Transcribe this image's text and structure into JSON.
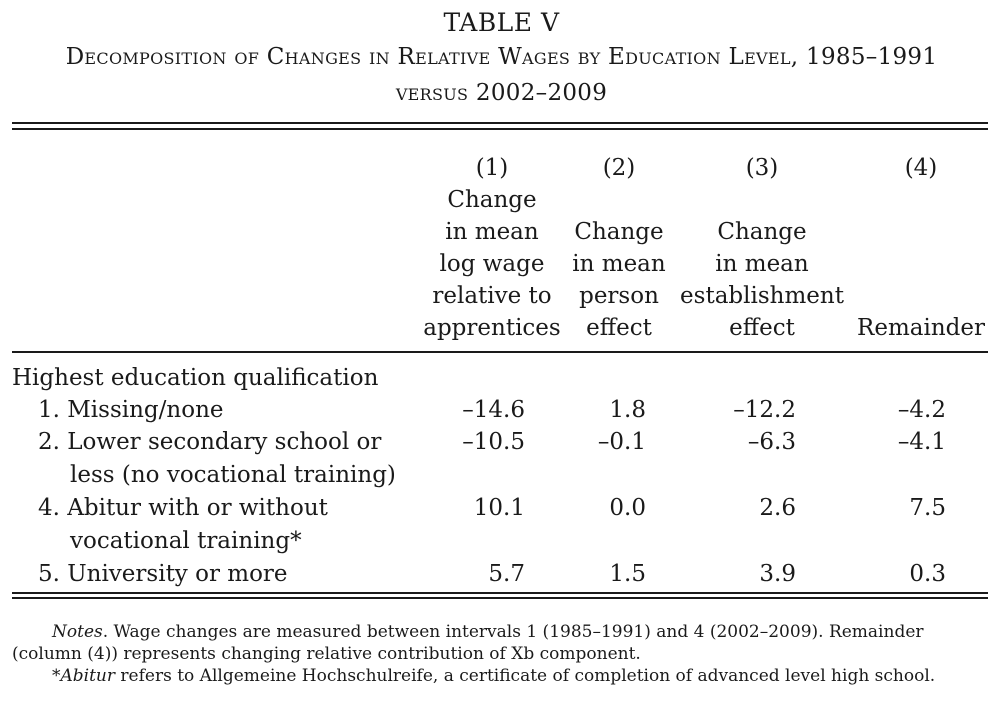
{
  "table": {
    "label": "TABLE V",
    "title_line1": "Decomposition of Changes in Relative Wages by Education Level, 1985–1991",
    "title_line2": "versus 2002–2009",
    "columns": [
      {
        "number": "(1)",
        "heading": [
          "Change",
          "in mean",
          "log wage",
          "relative to",
          "apprentices"
        ]
      },
      {
        "number": "(2)",
        "heading": [
          "Change",
          "in mean",
          "person",
          "effect"
        ]
      },
      {
        "number": "(3)",
        "heading": [
          "Change",
          "in mean",
          "establishment",
          "effect"
        ]
      },
      {
        "number": "(4)",
        "heading": [
          "Remainder"
        ]
      }
    ],
    "section_label": "Highest education qualification",
    "rows": [
      {
        "label": [
          "1. Missing/none"
        ],
        "values": [
          "–14.6",
          "1.8",
          "–12.2",
          "–4.2"
        ]
      },
      {
        "label": [
          "2. Lower secondary school or",
          "less (no vocational training)"
        ],
        "values": [
          "–10.5",
          "–0.1",
          "–6.3",
          "–4.1"
        ]
      },
      {
        "label": [
          "4. Abitur with or without",
          "vocational training*"
        ],
        "values": [
          "10.1",
          "0.0",
          "2.6",
          "7.5"
        ]
      },
      {
        "label": [
          "5. University or more"
        ],
        "values": [
          "5.7",
          "1.5",
          "3.9",
          "0.3"
        ]
      }
    ]
  },
  "notes": {
    "label": "Notes",
    "text1": ". Wage changes are measured between intervals 1 (1985–1991) and 4 (2002–2009). Remainder",
    "text2": "(column (4)) represents changing relative contribution of Xb component.",
    "footnote_mark": "*",
    "footnote_term": "Abitur",
    "footnote_text": " refers to Allgemeine Hochschulreife, a certificate of completion of advanced level high school."
  }
}
